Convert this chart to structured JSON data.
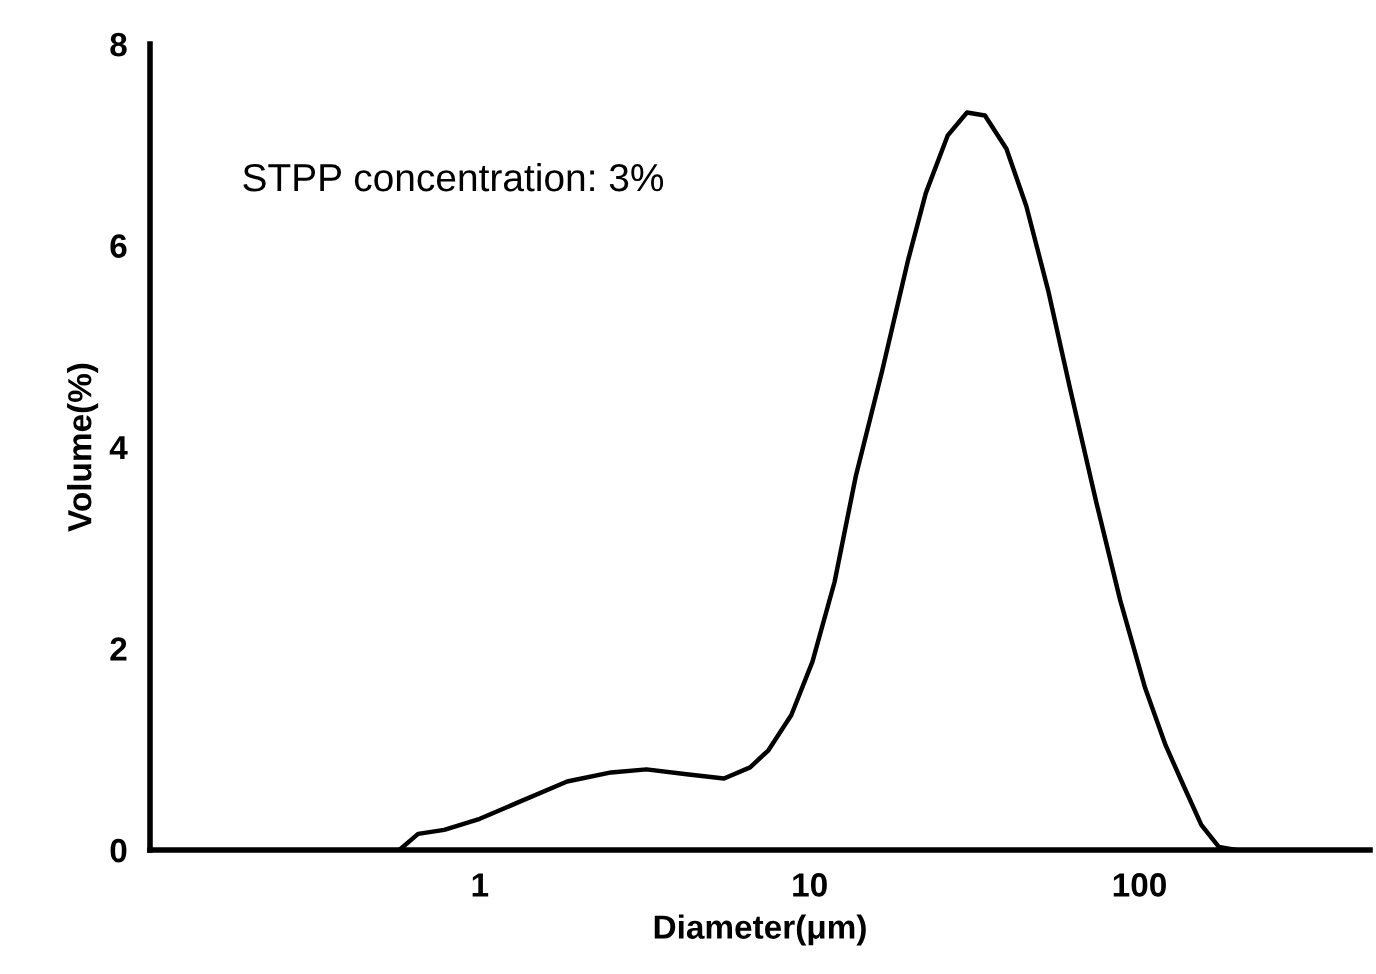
{
  "chart_data": {
    "type": "line",
    "xlabel": "Diameter(μm)",
    "ylabel": "Volume(%)",
    "annotations": [
      "STPP concentration: 3%"
    ],
    "log": "x",
    "xlim": [
      0.1,
      500
    ],
    "xticks": [
      1,
      10,
      100
    ],
    "ylim": [
      0,
      8
    ],
    "yticks": [
      0,
      2,
      4,
      6,
      8
    ],
    "grid": false,
    "marker": "none",
    "line_style": "solid",
    "series": [
      {
        "color": "#000000",
        "x": [
          0.57,
          0.65,
          0.78,
          1.0,
          1.28,
          1.84,
          2.5,
          3.2,
          4.3,
          5.5,
          6.6,
          7.5,
          8.8,
          10.2,
          11.9,
          13.8,
          16.6,
          19.9,
          22.5,
          26.2,
          30,
          34,
          39.5,
          45.4,
          52.9,
          61.5,
          74,
          87.4,
          104,
          120,
          136,
          154,
          174,
          197
        ],
        "values": [
          0,
          0.16,
          0.2,
          0.31,
          0.46,
          0.68,
          0.77,
          0.8,
          0.75,
          0.71,
          0.82,
          0.99,
          1.34,
          1.87,
          2.66,
          3.71,
          4.76,
          5.86,
          6.52,
          7.09,
          7.32,
          7.29,
          6.96,
          6.39,
          5.55,
          4.59,
          3.45,
          2.48,
          1.61,
          1.04,
          0.64,
          0.25,
          0.03,
          0
        ]
      }
    ]
  }
}
